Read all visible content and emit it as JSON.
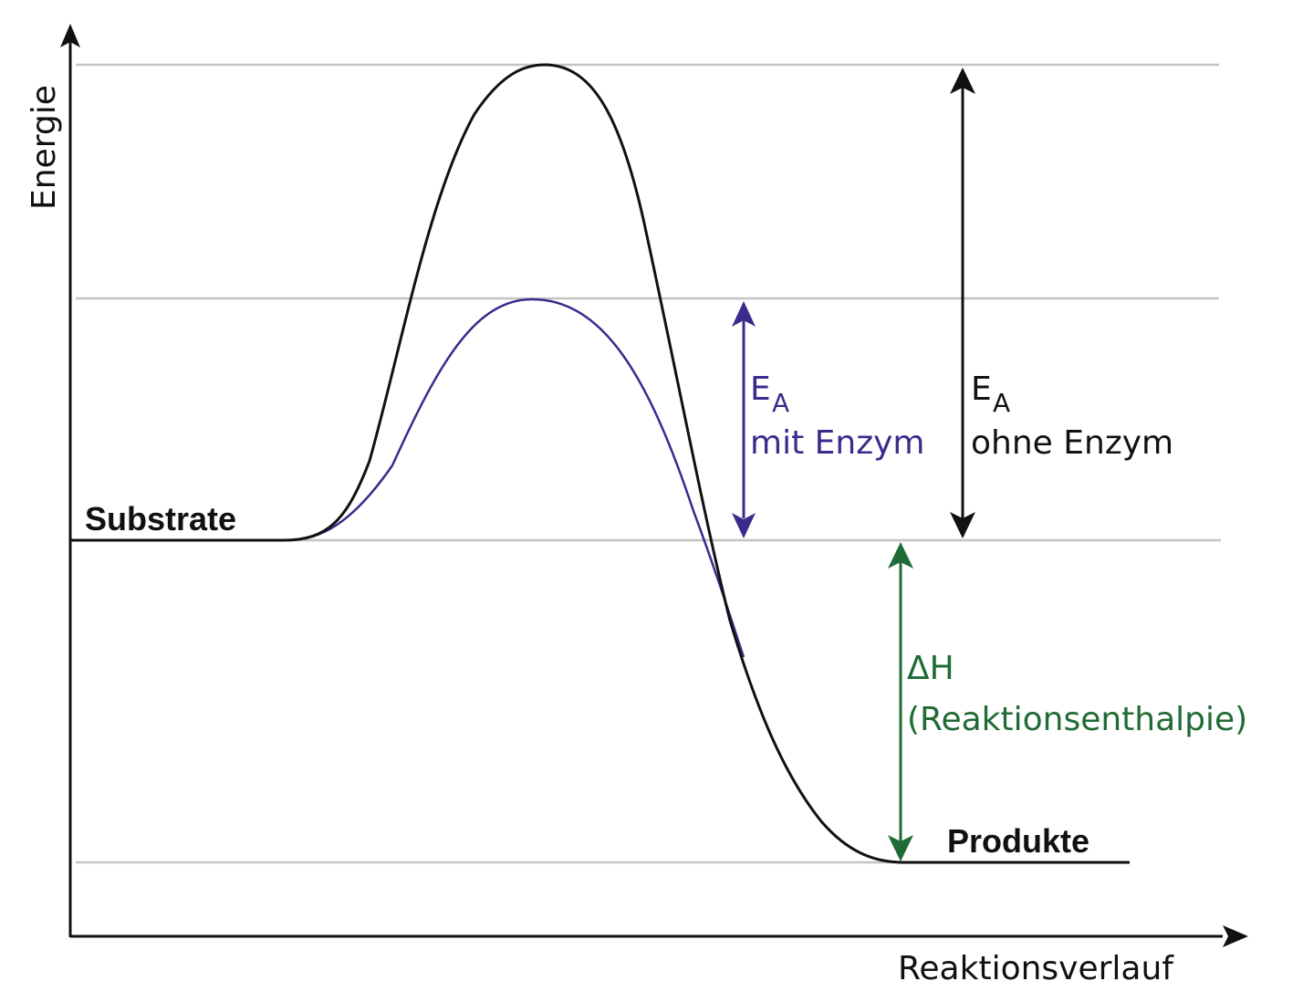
{
  "axes": {
    "y_label": "Energie",
    "x_label": "Reaktionsverlauf"
  },
  "levels": {
    "substrate": "Substrate",
    "product": "Produkte"
  },
  "annotations": {
    "ea_enzyme": {
      "symbol": "E",
      "subscript": "A",
      "text": "mit Enzym"
    },
    "ea_no_enzyme": {
      "symbol": "E",
      "subscript": "A",
      "text": "ohne Enzym"
    },
    "delta_h": {
      "symbol": "ΔH",
      "text": "(Reaktionsenthalpie)"
    }
  },
  "colors": {
    "curve_without_enzyme": "#111111",
    "curve_with_enzyme": "#3c2a8c",
    "ea_enzyme": "#3c2a8c",
    "ea_no_enzyme": "#111111",
    "delta_h": "#1f6b35",
    "reference_lines": "#c4c4c4",
    "axes": "#111111"
  }
}
